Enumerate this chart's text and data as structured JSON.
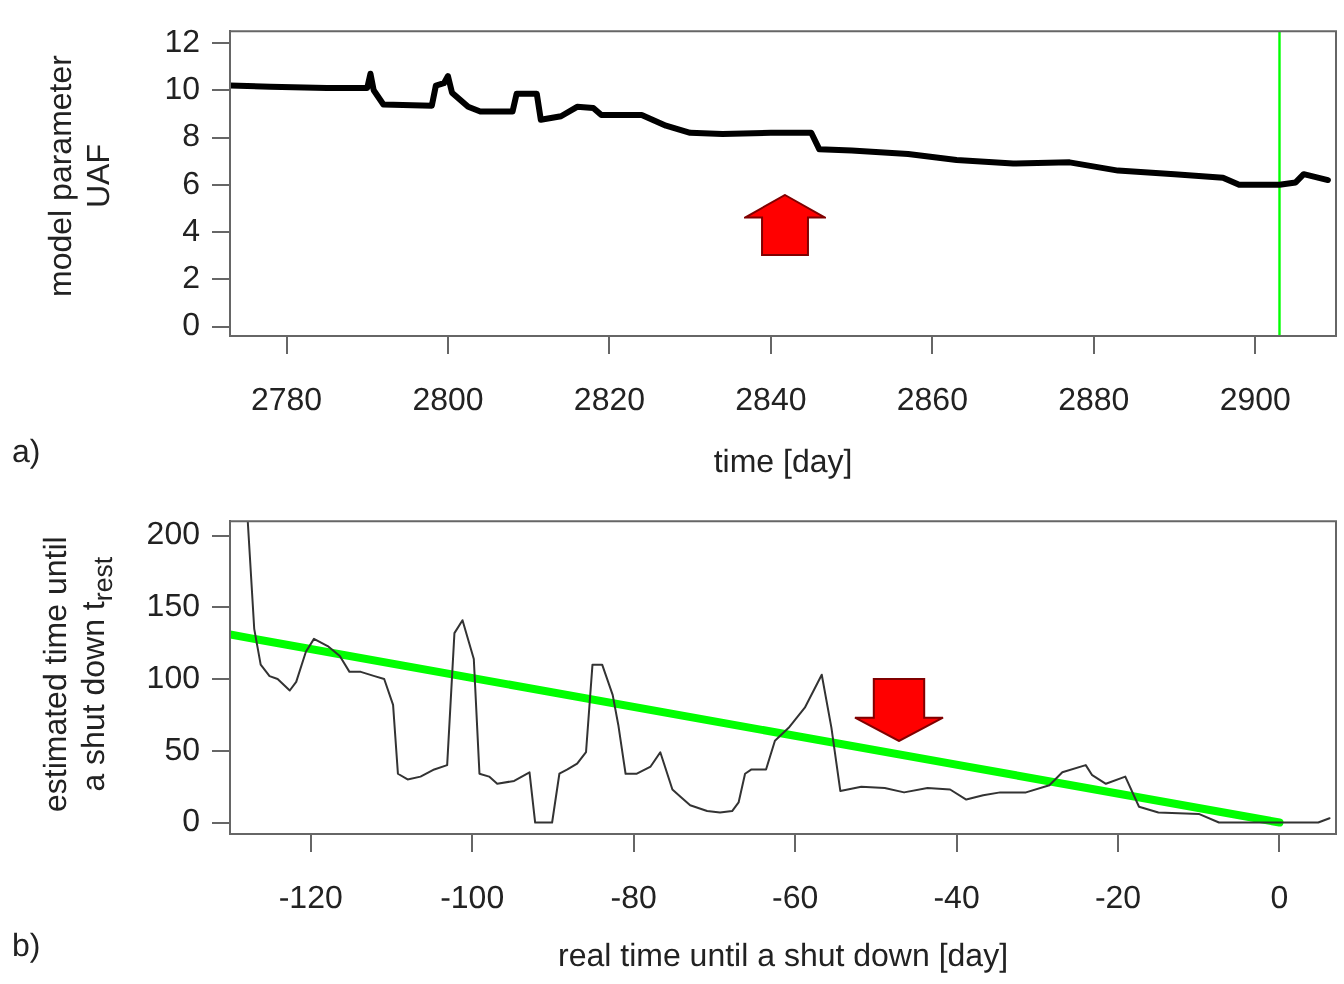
{
  "chart_data": [
    {
      "type": "line",
      "xlabel": "time [day]",
      "ylabel": "model parameter\nUAF",
      "xlim": [
        2773,
        2910
      ],
      "xticks": [
        2780,
        2800,
        2820,
        2840,
        2860,
        2880,
        2900
      ],
      "ylim": [
        -0.4,
        12.5
      ],
      "yticks": [
        0,
        2,
        4,
        6,
        8,
        10,
        12
      ],
      "series": [
        {
          "color": "#000000",
          "x": [
            2773,
            2778,
            2785,
            2790,
            2790.4,
            2790.8,
            2792,
            2798,
            2798.5,
            2799.5,
            2800,
            2800.5,
            2801.5,
            2802.5,
            2804,
            2808,
            2808.5,
            2811,
            2811.5,
            2814,
            2816,
            2818,
            2819,
            2824,
            2827,
            2830,
            2834,
            2840,
            2845,
            2846,
            2850,
            2857,
            2863,
            2870,
            2877,
            2883,
            2890,
            2896,
            2898,
            2903,
            2905,
            2906,
            2909
          ],
          "values": [
            10.2,
            10.15,
            10.1,
            10.1,
            10.7,
            10.0,
            9.4,
            9.35,
            10.2,
            10.3,
            10.6,
            9.9,
            9.6,
            9.3,
            9.1,
            9.1,
            9.85,
            9.85,
            8.75,
            8.9,
            9.3,
            9.25,
            8.95,
            8.95,
            8.5,
            8.2,
            8.15,
            8.2,
            8.2,
            7.5,
            7.45,
            7.3,
            7.05,
            6.9,
            6.95,
            6.6,
            6.45,
            6.3,
            6.0,
            6.0,
            6.1,
            6.45,
            6.2
          ]
        }
      ],
      "ref_lines": [
        {
          "axis": "x",
          "value": 2903,
          "color": "#00ff00"
        }
      ],
      "annotations": [
        "a)"
      ]
    },
    {
      "type": "line",
      "xlabel": "real time until a shut down [day]",
      "ylabel": "estimated time until\na shut down t$_{rest}$",
      "xlim": [
        -130,
        7
      ],
      "xticks": [
        -120,
        -100,
        -80,
        -60,
        -40,
        -20,
        0
      ],
      "ylim": [
        -8,
        210
      ],
      "yticks": [
        0,
        50,
        100,
        150,
        200
      ],
      "series": [
        {
          "color": "#333333",
          "x": [
            -127.8,
            -127,
            -126.2,
            -125.1,
            -124.1,
            -122.6,
            -121.8,
            -120.6,
            -119.6,
            -117.9,
            -116.4,
            -115.2,
            -113.8,
            -112.1,
            -110.9,
            -109.8,
            -109.2,
            -108,
            -106.4,
            -104.7,
            -103.1,
            -102.2,
            -101.2,
            -99.8,
            -99.1,
            -97.9,
            -96.9,
            -94.8,
            -92.9,
            -92.2,
            -90.1,
            -89.2,
            -88.2,
            -87,
            -85.9,
            -85.1,
            -83.9,
            -82.6,
            -81.9,
            -81,
            -79.6,
            -77.9,
            -76.7,
            -75.2,
            -74.2,
            -73,
            -70.9,
            -69.3,
            -67.8,
            -67,
            -66.2,
            -65.4,
            -63.6,
            -62.5,
            -60.8,
            -58.8,
            -56.7,
            -55.5,
            -54.4,
            -51.8,
            -48.9,
            -46.5,
            -43.6,
            -40.8,
            -38.8,
            -36.7,
            -34.6,
            -31.4,
            -28.5,
            -26.9,
            -24,
            -23.2,
            -21.5,
            -19.1,
            -17.4,
            -15,
            -10,
            -7.5,
            -3.4,
            0,
            4.8,
            6.2
          ],
          "values": [
            210,
            135,
            110,
            102,
            100,
            92,
            98,
            119,
            128,
            123,
            116,
            105,
            105,
            102,
            100,
            82,
            34,
            30,
            32,
            37,
            40,
            132,
            141,
            114,
            34,
            32,
            27,
            29,
            35,
            0,
            0,
            34,
            37,
            41,
            49,
            110,
            110,
            89,
            68,
            34,
            34,
            39,
            49,
            23,
            18,
            12,
            8,
            7,
            8,
            14,
            34,
            37,
            37,
            57,
            66,
            80,
            103,
            66,
            22,
            25,
            24,
            21,
            24,
            23,
            16,
            19,
            21,
            21,
            26,
            35,
            40,
            33,
            27,
            32,
            11,
            7,
            6,
            0,
            0,
            0,
            0,
            3
          ]
        },
        {
          "color": "#00ff00",
          "x": [
            -130,
            0
          ],
          "values": [
            131,
            0
          ]
        }
      ],
      "annotations": [
        "b)"
      ]
    }
  ]
}
